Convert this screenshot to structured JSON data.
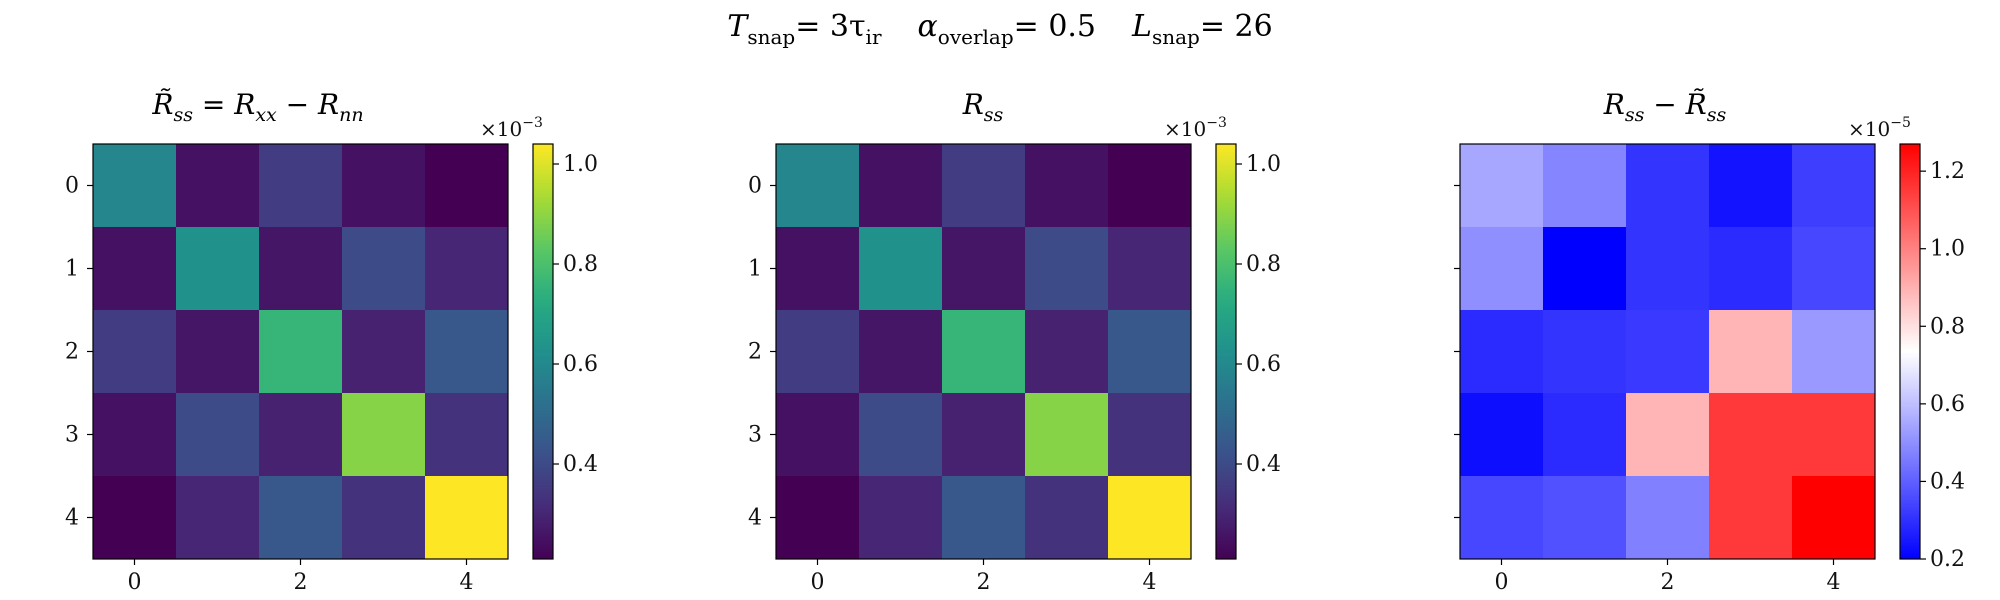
{
  "figure": {
    "suptitle": {
      "t_var": "T",
      "t_sub": "snap",
      "t_val": "= 3τ",
      "t_val_sub": "ir",
      "a_var": "α",
      "a_sub": "overlap",
      "a_val": "= 0.5",
      "l_var": "L",
      "l_sub": "snap",
      "l_val": "= 26"
    }
  },
  "chart_data": [
    {
      "type": "heatmap",
      "title": "R̃ss = Rxx − Rnn",
      "title_parts": {
        "r1": "R̃",
        "r1_sub": "ss",
        "eq": " = ",
        "r2": "R",
        "r2_sub": "xx",
        "minus": " − ",
        "r3": "R",
        "r3_sub": "nn"
      },
      "colormap": "viridis",
      "x_ticks": [
        "0",
        "2",
        "4"
      ],
      "y_ticks": [
        "0",
        "1",
        "2",
        "3",
        "4"
      ],
      "vmin": 0.21,
      "vmax": 1.04,
      "colorbar_ticks": [
        "0.4",
        "0.6",
        "0.8",
        "1.0"
      ],
      "colorbar_tick_values": [
        0.4,
        0.6,
        0.8,
        1.0
      ],
      "colorbar_exponent": {
        "base": "×10",
        "power": "−3"
      },
      "values": [
        [
          0.59,
          0.25,
          0.36,
          0.25,
          0.21
        ],
        [
          0.25,
          0.63,
          0.26,
          0.4,
          0.3
        ],
        [
          0.36,
          0.26,
          0.76,
          0.29,
          0.44
        ],
        [
          0.25,
          0.4,
          0.29,
          0.89,
          0.33
        ],
        [
          0.21,
          0.3,
          0.44,
          0.33,
          1.04
        ]
      ]
    },
    {
      "type": "heatmap",
      "title": "Rss",
      "title_parts": {
        "r1": "R",
        "r1_sub": "ss"
      },
      "colormap": "viridis",
      "x_ticks": [
        "0",
        "2",
        "4"
      ],
      "y_ticks": [
        "0",
        "1",
        "2",
        "3",
        "4"
      ],
      "vmin": 0.21,
      "vmax": 1.04,
      "colorbar_ticks": [
        "0.4",
        "0.6",
        "0.8",
        "1.0"
      ],
      "colorbar_tick_values": [
        0.4,
        0.6,
        0.8,
        1.0
      ],
      "colorbar_exponent": {
        "base": "×10",
        "power": "−3"
      },
      "values": [
        [
          0.59,
          0.25,
          0.36,
          0.25,
          0.21
        ],
        [
          0.25,
          0.63,
          0.26,
          0.4,
          0.3
        ],
        [
          0.36,
          0.26,
          0.76,
          0.29,
          0.44
        ],
        [
          0.25,
          0.4,
          0.29,
          0.89,
          0.33
        ],
        [
          0.21,
          0.3,
          0.44,
          0.33,
          1.04
        ]
      ]
    },
    {
      "type": "heatmap",
      "title": "Rss − R̃ss",
      "title_parts": {
        "r1": "R",
        "r1_sub": "ss",
        "minus": " − ",
        "r2": "R̃",
        "r2_sub": "ss"
      },
      "colormap": "bwr",
      "x_ticks": [
        "0",
        "2",
        "4"
      ],
      "y_ticks": [],
      "vmin": 0.2,
      "vmax": 1.27,
      "colorbar_ticks": [
        "0.2",
        "0.4",
        "0.6",
        "0.8",
        "1.0",
        "1.2"
      ],
      "colorbar_tick_values": [
        0.2,
        0.4,
        0.6,
        0.8,
        1.0,
        1.2
      ],
      "colorbar_exponent": {
        "base": "×10",
        "power": "−5"
      },
      "values": [
        [
          0.55,
          0.48,
          0.31,
          0.24,
          0.33
        ],
        [
          0.5,
          0.2,
          0.31,
          0.29,
          0.35
        ],
        [
          0.29,
          0.31,
          0.32,
          0.89,
          0.52
        ],
        [
          0.23,
          0.29,
          0.89,
          1.15,
          1.15
        ],
        [
          0.35,
          0.37,
          0.47,
          1.15,
          1.27
        ]
      ]
    }
  ]
}
